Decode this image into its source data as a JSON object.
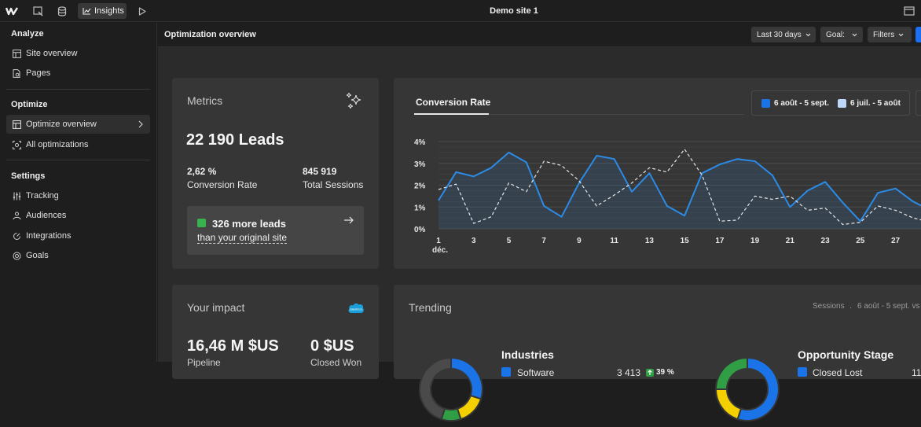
{
  "topbar": {
    "insights_label": "Insights",
    "site_title": "Demo site 1"
  },
  "sidebar": {
    "sections": [
      {
        "label": "Analyze",
        "items": [
          {
            "label": "Site overview",
            "icon": "layout-icon"
          },
          {
            "label": "Pages",
            "icon": "page-search-icon"
          }
        ]
      },
      {
        "label": "Optimize",
        "items": [
          {
            "label": "Optimize overview",
            "icon": "layout-icon",
            "active": true
          },
          {
            "label": "All optimizations",
            "icon": "target-icon"
          }
        ]
      },
      {
        "label": "Settings",
        "items": [
          {
            "label": "Tracking",
            "icon": "tracking-icon"
          },
          {
            "label": "Audiences",
            "icon": "audience-icon"
          },
          {
            "label": "Integrations",
            "icon": "integration-icon"
          },
          {
            "label": "Goals",
            "icon": "goal-icon"
          }
        ]
      }
    ]
  },
  "page": {
    "title": "Optimization overview",
    "date_range": "Last 30 days",
    "goal_label": "Goal:",
    "filters_label": "Filters"
  },
  "metrics": {
    "title": "Metrics",
    "leads": "22 190 Leads",
    "conversion_rate_value": "2,62 %",
    "conversion_rate_label": "Conversion Rate",
    "total_sessions_value": "845 919",
    "total_sessions_label": "Total Sessions",
    "more_leads": "326 more leads",
    "more_leads_sub": "than your original site"
  },
  "conversion": {
    "tab_label": "Conversion Rate",
    "legend_current": "6 août - 5 sept.",
    "legend_previous": "6 juil. - 5 août",
    "colors": {
      "current": "#2b8be6",
      "previous": "#bcd7f7"
    }
  },
  "chart_data": {
    "type": "line",
    "x_labels": [
      "1\ndéc.",
      "3",
      "5",
      "7",
      "9",
      "11",
      "13",
      "15",
      "17",
      "19",
      "21",
      "23",
      "25",
      "27"
    ],
    "y_ticks": [
      "4%",
      "3%",
      "2%",
      "1%",
      "0%"
    ],
    "ylim": [
      0,
      4
    ],
    "x": [
      1,
      2,
      3,
      4,
      5,
      6,
      7,
      8,
      9,
      10,
      11,
      12,
      13,
      14,
      15,
      16,
      17,
      18,
      19,
      20,
      21,
      22,
      23,
      24,
      25,
      26,
      27,
      28,
      29
    ],
    "series": [
      {
        "name": "6 août - 5 sept.",
        "style": "solid",
        "area": true,
        "values": [
          1.3,
          2.6,
          2.4,
          2.8,
          3.5,
          3.05,
          1.05,
          0.55,
          2.1,
          3.35,
          3.2,
          1.7,
          2.55,
          1.05,
          0.6,
          2.55,
          2.95,
          3.2,
          3.1,
          2.45,
          1.0,
          1.75,
          2.15,
          1.2,
          0.35,
          1.65,
          1.85,
          1.25,
          0.85
        ]
      },
      {
        "name": "6 juil. - 5 août",
        "style": "dashed",
        "area": false,
        "values": [
          1.8,
          2.05,
          0.25,
          0.55,
          2.1,
          1.7,
          3.1,
          2.9,
          2.2,
          1.05,
          1.55,
          2.1,
          2.8,
          2.6,
          3.65,
          2.45,
          0.35,
          0.4,
          1.5,
          1.35,
          1.5,
          0.85,
          0.95,
          0.2,
          0.3,
          1.05,
          0.85,
          0.5,
          0.3
        ]
      }
    ]
  },
  "impact": {
    "title": "Your impact",
    "pipeline_value": "16,46 M $US",
    "pipeline_label": "Pipeline",
    "closed_won_value": "0 $US",
    "closed_won_label": "Closed Won"
  },
  "trending": {
    "title": "Trending",
    "meta_metric": "Sessions",
    "meta_range": "6 août - 5 sept. vs",
    "industries": {
      "title": "Industries",
      "rows": [
        {
          "label": "Software",
          "value": "3 413",
          "change": "39 %"
        }
      ],
      "slices": [
        {
          "color": "#1b73e8",
          "value": 30
        },
        {
          "color": "#f5d000",
          "value": 15
        },
        {
          "color": "#2f9e44",
          "value": 10
        },
        {
          "color": "#4a4a4a",
          "value": 45
        }
      ]
    },
    "opportunity": {
      "title": "Opportunity Stage",
      "rows": [
        {
          "label": "Closed Lost",
          "value": "11"
        }
      ],
      "slices": [
        {
          "color": "#1b73e8",
          "value": 55
        },
        {
          "color": "#f5d000",
          "value": 20
        },
        {
          "color": "#2f9e44",
          "value": 25
        }
      ]
    }
  }
}
